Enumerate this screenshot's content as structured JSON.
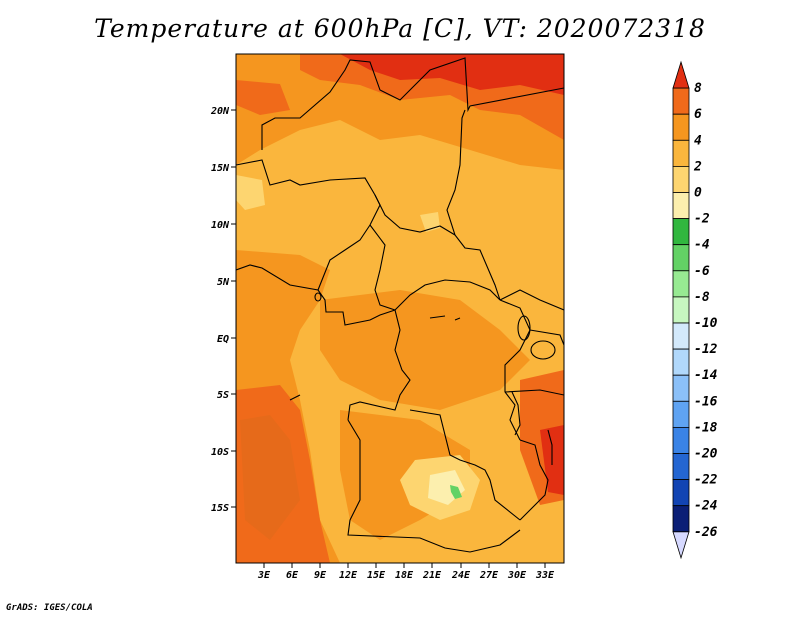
{
  "title": "Temperature at 600hPa [C], VT: 2020072318",
  "credit": "GrADS: IGES/COLA",
  "map": {
    "lat_labels": [
      "20N",
      "15N",
      "10N",
      "5N",
      "EQ",
      "5S",
      "10S",
      "15S"
    ],
    "lon_labels": [
      "3E",
      "6E",
      "9E",
      "12E",
      "15E",
      "18E",
      "21E",
      "24E",
      "27E",
      "30E",
      "33E"
    ]
  },
  "colorbar": {
    "labels": [
      "8",
      "6",
      "4",
      "2",
      "0",
      "-2",
      "-4",
      "-6",
      "-8",
      "-10",
      "-12",
      "-14",
      "-16",
      "-18",
      "-20",
      "-22",
      "-24",
      "-26"
    ],
    "colors": [
      "#e12f12",
      "#f06a1a",
      "#f5961f",
      "#fab63d",
      "#fdd570",
      "#fcefae",
      "#31b73f",
      "#63d265",
      "#97ea92",
      "#c7f7c0",
      "#d3e9fb",
      "#b1d8fb",
      "#8bc0f8",
      "#5fa3f2",
      "#3a83e6",
      "#2466d2",
      "#1244b3",
      "#0b1f76",
      "#d6d9ff"
    ]
  }
}
